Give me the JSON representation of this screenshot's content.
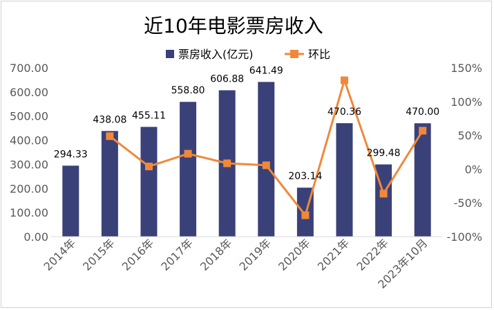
{
  "chart_data": {
    "type": "bar+line",
    "title": "近10年电影票房收入",
    "categories": [
      "2014年",
      "2015年",
      "2016年",
      "2017年",
      "2018年",
      "2019年",
      "2020年",
      "2021年",
      "2022年",
      "2023年10月"
    ],
    "series": [
      {
        "name": "票房收入(亿元)",
        "type": "bar",
        "axis": "left",
        "color": "#3a4179",
        "values": [
          294.33,
          438.08,
          455.11,
          558.8,
          606.88,
          641.49,
          203.14,
          470.36,
          299.48,
          470.0
        ],
        "labels": [
          "294.33",
          "438.08",
          "455.11",
          "558.80",
          "606.88",
          "641.49",
          "203.14",
          "470.36",
          "299.48",
          "470.00"
        ]
      },
      {
        "name": "环比",
        "type": "line",
        "axis": "right",
        "color": "#f0883a",
        "values": [
          null,
          48.8,
          3.9,
          22.8,
          8.6,
          5.7,
          -68.3,
          131.5,
          -36.3,
          56.9
        ]
      }
    ],
    "left_axis": {
      "min": 0,
      "max": 700,
      "step": 100,
      "tick_labels": [
        "0.00",
        "100.00",
        "200.00",
        "300.00",
        "400.00",
        "500.00",
        "600.00",
        "700.00"
      ]
    },
    "right_axis": {
      "min": -100,
      "max": 150,
      "step": 50,
      "tick_labels": [
        "-100%",
        "-50%",
        "0%",
        "50%",
        "100%",
        "150%"
      ]
    },
    "legend": {
      "position": "top-right",
      "items": [
        {
          "label": "票房收入(亿元)",
          "marker": "square"
        },
        {
          "label": "环比",
          "marker": "line-square"
        }
      ]
    },
    "grid": false
  }
}
